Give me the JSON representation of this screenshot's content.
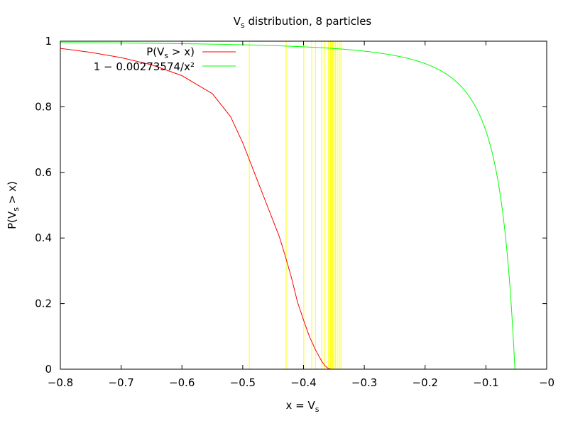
{
  "chart_data": {
    "type": "line",
    "title": {
      "main": "V",
      "sub": "s",
      "rest": " distribution, 8 particles"
    },
    "xlabel": {
      "main": "x = V",
      "sub": "s",
      "rest": ""
    },
    "ylabel": {
      "main": "P(V",
      "sub": "s",
      "rest": " > x)"
    },
    "xlim": [
      -0.8,
      0
    ],
    "ylim": [
      0,
      1
    ],
    "x_ticks": [
      -0.8,
      -0.7,
      -0.6,
      -0.5,
      -0.4,
      -0.3,
      -0.2,
      -0.1,
      0
    ],
    "x_tick_labels": [
      "−0.8",
      "−0.7",
      "−0.6",
      "−0.5",
      "−0.4",
      "−0.3",
      "−0.2",
      "−0.1",
      "−0"
    ],
    "y_ticks": [
      0,
      0.2,
      0.4,
      0.6,
      0.8,
      1
    ],
    "y_tick_labels": [
      "0",
      "0.2",
      "0.4",
      "0.6",
      "0.8",
      "1"
    ],
    "grid": false,
    "legend_position": "top-left",
    "series": [
      {
        "name": {
          "main": "P(V",
          "sub": "s",
          "rest": " > x)"
        },
        "color": "#ff0000",
        "x": [
          -0.8,
          -0.75,
          -0.7,
          -0.65,
          -0.6,
          -0.55,
          -0.52,
          -0.5,
          -0.48,
          -0.46,
          -0.44,
          -0.43,
          -0.42,
          -0.41,
          -0.4,
          -0.39,
          -0.38,
          -0.37,
          -0.365,
          -0.36,
          -0.357,
          -0.355
        ],
        "y": [
          0.978,
          0.966,
          0.95,
          0.928,
          0.895,
          0.84,
          0.77,
          0.69,
          0.595,
          0.5,
          0.405,
          0.345,
          0.28,
          0.205,
          0.15,
          0.098,
          0.058,
          0.024,
          0.011,
          0.003,
          0.001,
          0.0
        ]
      },
      {
        "name": "1 − 0.00273574/x²",
        "color": "#00ff00",
        "formula_coefficient": 0.00273574,
        "x_range": [
          -0.8,
          -0.0523
        ]
      }
    ],
    "sample_lines": {
      "color": "#ffff00",
      "x": [
        -0.4892,
        -0.4286,
        -0.3996,
        -0.3866,
        -0.3803,
        -0.3702,
        -0.3659,
        -0.3593,
        -0.3557,
        -0.3537,
        -0.3519,
        -0.3502,
        -0.3477,
        -0.3445,
        -0.3413,
        -0.3385
      ]
    }
  }
}
